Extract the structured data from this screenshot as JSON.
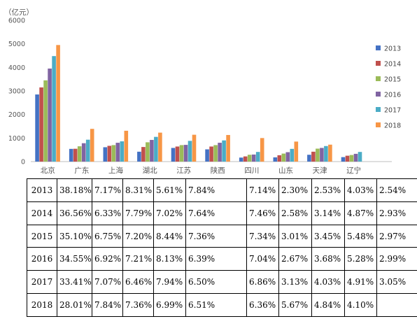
{
  "chart_data": {
    "type": "bar",
    "unit_label": "（亿元）",
    "ylim": [
      0,
      6000
    ],
    "yticks": [
      "0",
      "1000",
      "2000",
      "3000",
      "4000",
      "5000",
      "6000"
    ],
    "grid": false,
    "legend_position": "right",
    "categories": [
      "北京",
      "广东",
      "上海",
      "湖北",
      "江苏",
      "陕西",
      "四川",
      "山东",
      "天津",
      "辽宁"
    ],
    "series": [
      {
        "name": "2013",
        "color": "#4472c4",
        "values": [
          2850,
          540,
          610,
          420,
          580,
          520,
          170,
          180,
          290,
          190
        ]
      },
      {
        "name": "2014",
        "color": "#c0504d",
        "values": [
          3150,
          545,
          670,
          620,
          640,
          640,
          220,
          270,
          420,
          250
        ]
      },
      {
        "name": "2015",
        "color": "#9bbb59",
        "values": [
          3450,
          650,
          700,
          820,
          700,
          700,
          290,
          340,
          550,
          280
        ]
      },
      {
        "name": "2016",
        "color": "#8064a2",
        "values": [
          3950,
          780,
          800,
          920,
          710,
          800,
          300,
          400,
          580,
          330
        ]
      },
      {
        "name": "2017",
        "color": "#4bacc6",
        "values": [
          4480,
          930,
          860,
          1050,
          880,
          900,
          410,
          540,
          660,
          410
        ]
      },
      {
        "name": "2018",
        "color": "#f79646",
        "values": [
          4950,
          1390,
          1310,
          1230,
          1140,
          1130,
          1000,
          850,
          720,
          null
        ]
      }
    ]
  },
  "table": {
    "rows": [
      [
        "2013",
        "38.18%",
        "7.17%",
        "8.31%",
        "5.61%",
        "7.84%",
        "7.14%",
        "2.30%",
        "2.53%",
        "4.03%",
        "2.54%"
      ],
      [
        "2014",
        "36.56%",
        "6.33%",
        "7.79%",
        "7.02%",
        "7.64%",
        "7.46%",
        "2.58%",
        "3.14%",
        "4.87%",
        "2.93%"
      ],
      [
        "2015",
        "35.10%",
        "6.75%",
        "7.20%",
        "8.44%",
        "7.36%",
        "7.34%",
        "3.01%",
        "3.45%",
        "5.48%",
        "2.97%"
      ],
      [
        "2016",
        "34.55%",
        "6.92%",
        "7.21%",
        "8.13%",
        "6.39%",
        "7.04%",
        "2.67%",
        "3.68%",
        "5.28%",
        "2.99%"
      ],
      [
        "2017",
        "33.41%",
        "7.07%",
        "6.46%",
        "7.94%",
        "6.50%",
        "6.86%",
        "3.13%",
        "4.03%",
        "4.91%",
        "3.05%"
      ],
      [
        "2018",
        "28.01%",
        "7.84%",
        "7.36%",
        "6.99%",
        "6.51%",
        "6.36%",
        "5.67%",
        "4.84%",
        "4.10%",
        ""
      ]
    ]
  }
}
